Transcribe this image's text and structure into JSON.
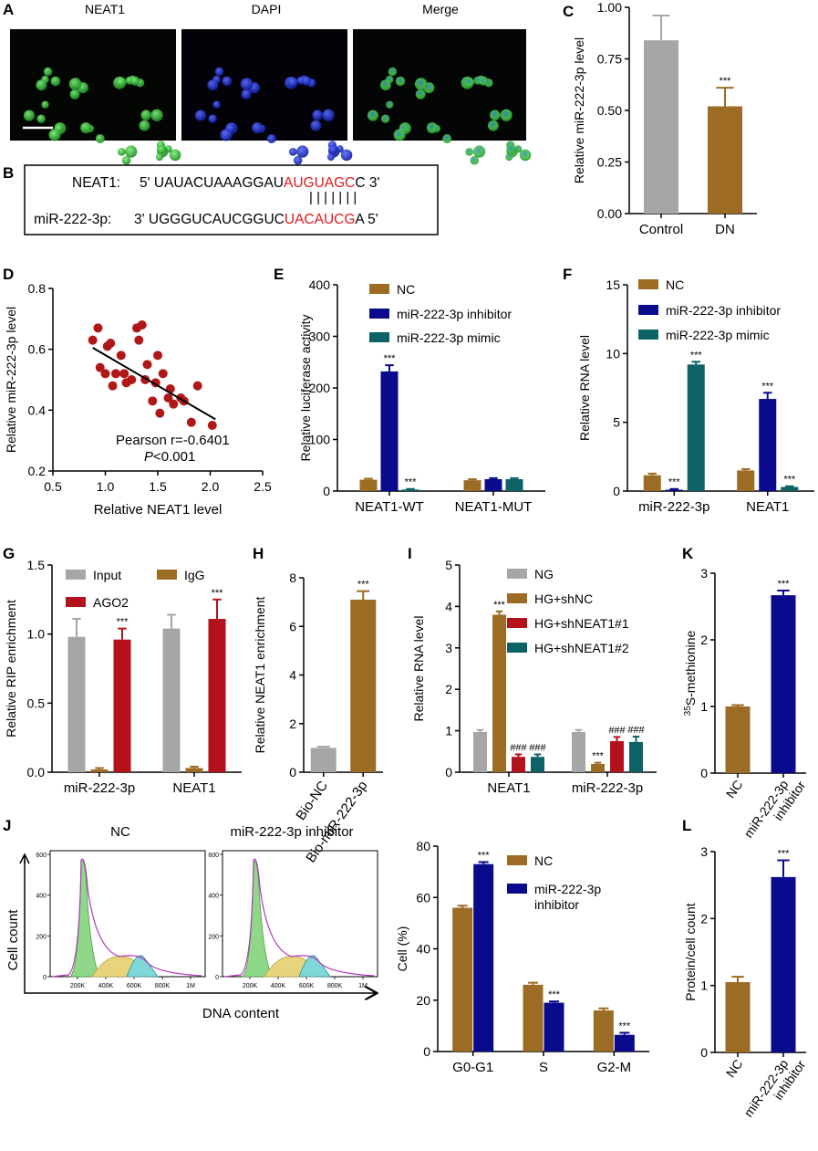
{
  "colors": {
    "gray": "#a6a6a6",
    "brown": "#9c6b24",
    "navy": "#0a0a8c",
    "teal": "#0d6265",
    "red": "#b3121b",
    "scatter": "#b01818",
    "microGreen": "#2ea831",
    "microBlue": "#1f2bd6",
    "seqRed": "#e0191d"
  },
  "panels": {
    "A": {
      "label": "A",
      "titles": [
        "NEAT1",
        "DAPI",
        "Merge"
      ]
    },
    "B": {
      "label": "B",
      "line1": {
        "name": "NEAT1:",
        "pre": "5' UAUACUAAAGGAU",
        "hl": "AUGUAGC",
        "post": "C 3'"
      },
      "bars": "| | | | | | |",
      "line2": {
        "name": "miR-222-3p:",
        "pre": "3' UGGGUCAUCGGUC",
        "hl": "UACAUCG",
        "post": "A 5'"
      }
    },
    "C": {
      "label": "C",
      "chart_data": {
        "type": "bar",
        "ylabel": "Relative miR-222-3p level",
        "categories": [
          "Control",
          "DN"
        ],
        "values": [
          0.84,
          0.52
        ],
        "errors": [
          0.12,
          0.09
        ],
        "colors": [
          "#a6a6a6",
          "#9c6b24"
        ],
        "sig": [
          "",
          "***"
        ],
        "ylim": [
          0,
          1.0
        ],
        "yticks": [
          "0.00",
          "0.25",
          "0.50",
          "0.75",
          "1.00"
        ]
      }
    },
    "D": {
      "label": "D",
      "chart_data": {
        "type": "scatter",
        "xlabel": "Relative NEAT1 level",
        "ylabel": "Relative miR-222-3p level",
        "xlim": [
          0.5,
          2.5
        ],
        "ylim": [
          0.2,
          0.8
        ],
        "xticks": [
          "0.5",
          "1.0",
          "1.5",
          "2.0",
          "2.5"
        ],
        "yticks": [
          "0.2",
          "0.4",
          "0.6",
          "0.8"
        ],
        "points": [
          [
            0.88,
            0.63
          ],
          [
            0.93,
            0.67
          ],
          [
            0.95,
            0.54
          ],
          [
            1.0,
            0.52
          ],
          [
            1.02,
            0.61
          ],
          [
            1.05,
            0.62
          ],
          [
            1.07,
            0.48
          ],
          [
            1.1,
            0.52
          ],
          [
            1.15,
            0.58
          ],
          [
            1.18,
            0.52
          ],
          [
            1.2,
            0.49
          ],
          [
            1.25,
            0.5
          ],
          [
            1.3,
            0.67
          ],
          [
            1.32,
            0.63
          ],
          [
            1.35,
            0.68
          ],
          [
            1.38,
            0.5
          ],
          [
            1.4,
            0.55
          ],
          [
            1.45,
            0.43
          ],
          [
            1.48,
            0.49
          ],
          [
            1.5,
            0.58
          ],
          [
            1.52,
            0.39
          ],
          [
            1.55,
            0.52
          ],
          [
            1.6,
            0.44
          ],
          [
            1.62,
            0.47
          ],
          [
            1.65,
            0.42
          ],
          [
            1.72,
            0.44
          ],
          [
            1.75,
            0.43
          ],
          [
            1.82,
            0.36
          ],
          [
            1.88,
            0.48
          ],
          [
            2.02,
            0.35
          ]
        ],
        "fit": [
          [
            0.88,
            0.605
          ],
          [
            2.05,
            0.37
          ]
        ],
        "stat1": "Pearson r=-0.6401",
        "stat2_p": "P",
        "stat2_rest": "<0.001"
      }
    },
    "E": {
      "label": "E",
      "chart_data": {
        "type": "bar",
        "ylabel": "Relative luciferase activity",
        "categories": [
          "NEAT1-WT",
          "NEAT1-MUT"
        ],
        "series": [
          {
            "name": "NC",
            "color": "#9c6b24",
            "values": [
              22,
              21
            ],
            "errors": [
              2,
              2
            ],
            "sig": [
              "",
              ""
            ]
          },
          {
            "name": "miR-222-3p inhibitor",
            "color": "#0a0a8c",
            "values": [
              232,
              23
            ],
            "errors": [
              12,
              2
            ],
            "sig": [
              "***",
              ""
            ]
          },
          {
            "name": "miR-222-3p mimic",
            "color": "#0d6265",
            "values": [
              3,
              23
            ],
            "errors": [
              1,
              2
            ],
            "sig": [
              "***",
              ""
            ]
          }
        ],
        "ylim": [
          0,
          400
        ],
        "yticks": [
          "0",
          "100",
          "200",
          "300",
          "400"
        ]
      }
    },
    "F": {
      "label": "F",
      "chart_data": {
        "type": "bar",
        "ylabel": "Relative RNA level",
        "categories": [
          "miR-222-3p",
          "NEAT1"
        ],
        "series": [
          {
            "name": "NC",
            "color": "#9c6b24",
            "values": [
              1.15,
              1.5
            ],
            "errors": [
              0.12,
              0.1
            ],
            "sig": [
              "",
              ""
            ]
          },
          {
            "name": "miR-222-3p inhibitor",
            "color": "#0a0a8c",
            "values": [
              0.1,
              6.7
            ],
            "errors": [
              0.05,
              0.45
            ],
            "sig": [
              "***",
              "***"
            ]
          },
          {
            "name": "miR-222-3p mimic",
            "color": "#0d6265",
            "values": [
              9.2,
              0.3
            ],
            "errors": [
              0.2,
              0.05
            ],
            "sig": [
              "***",
              "***"
            ]
          }
        ],
        "ylim": [
          0,
          15
        ],
        "yticks": [
          "0",
          "5",
          "10",
          "15"
        ]
      }
    },
    "G": {
      "label": "G",
      "chart_data": {
        "type": "bar",
        "ylabel": "Relative RIP enrichment",
        "categories": [
          "miR-222-3p",
          "NEAT1"
        ],
        "series": [
          {
            "name": "Input",
            "color": "#a6a6a6",
            "values": [
              0.98,
              1.04
            ],
            "errors": [
              0.13,
              0.1
            ],
            "sig": [
              "",
              ""
            ]
          },
          {
            "name": "IgG",
            "color": "#9c6b24",
            "values": [
              0.02,
              0.03
            ],
            "errors": [
              0.01,
              0.01
            ],
            "sig": [
              "",
              ""
            ]
          },
          {
            "name": "AGO2",
            "color": "#b3121b",
            "values": [
              0.96,
              1.11
            ],
            "errors": [
              0.08,
              0.14
            ],
            "sig": [
              "***",
              "***"
            ]
          }
        ],
        "ylim": [
          0,
          1.5
        ],
        "yticks": [
          "0.0",
          "0.5",
          "1.0",
          "1.5"
        ]
      }
    },
    "H": {
      "label": "H",
      "chart_data": {
        "type": "bar",
        "ylabel": "Relative NEAT1 enrichment",
        "categories": [
          "Bio-NC",
          "Bio-miR-222-3p"
        ],
        "values": [
          1.0,
          7.1
        ],
        "errors": [
          0.05,
          0.35
        ],
        "colors": [
          "#a6a6a6",
          "#9c6b24"
        ],
        "sig": [
          "",
          "***"
        ],
        "ylim": [
          0,
          8
        ],
        "yticks": [
          "0",
          "2",
          "4",
          "6",
          "8"
        ]
      }
    },
    "I": {
      "label": "I",
      "chart_data": {
        "type": "bar",
        "ylabel": "Relative RNA level",
        "categories": [
          "NEAT1",
          "miR-222-3p"
        ],
        "series": [
          {
            "name": "NG",
            "color": "#a6a6a6",
            "values": [
              0.97,
              0.97
            ],
            "errors": [
              0.05,
              0.05
            ],
            "sig": [
              "",
              ""
            ]
          },
          {
            "name": "HG+shNC",
            "color": "#9c6b24",
            "values": [
              3.8,
              0.2
            ],
            "errors": [
              0.08,
              0.03
            ],
            "sig": [
              "***",
              "***"
            ]
          },
          {
            "name": "HG+shNEAT1#1",
            "color": "#b3121b",
            "values": [
              0.37,
              0.75
            ],
            "errors": [
              0.06,
              0.1
            ],
            "sig": [
              "###",
              "###"
            ]
          },
          {
            "name": "HG+shNEAT1#2",
            "color": "#0d6265",
            "values": [
              0.37,
              0.73
            ],
            "errors": [
              0.06,
              0.13
            ],
            "sig": [
              "###",
              "###"
            ]
          }
        ],
        "ylim": [
          0,
          5
        ],
        "yticks": [
          "0",
          "1",
          "2",
          "3",
          "4",
          "5"
        ]
      }
    },
    "K": {
      "label": "K",
      "chart_data": {
        "type": "bar",
        "ylabel_sup": "35",
        "ylabel": "S-methionine",
        "categories": [
          "NC",
          "miR-222-3p inhibitor"
        ],
        "values": [
          1.0,
          2.67
        ],
        "errors": [
          0.02,
          0.07
        ],
        "colors": [
          "#9c6b24",
          "#0a0a8c"
        ],
        "sig": [
          "",
          "***"
        ],
        "ylim": [
          0,
          3
        ],
        "yticks": [
          "0",
          "1",
          "2",
          "3"
        ]
      }
    },
    "J": {
      "label": "J",
      "flow": {
        "titles": [
          "NC",
          "miR-222-3p inhibitor"
        ],
        "ylabel": "Cell count",
        "xlabel": "DNA content",
        "yticks": [
          "0",
          "200",
          "400",
          "600"
        ],
        "xticks": [
          "200K",
          "400K",
          "600K",
          "800K",
          "1M"
        ]
      },
      "chart_data": {
        "type": "bar",
        "ylabel": "Cell (%)",
        "categories": [
          "G0-G1",
          "S",
          "G2-M"
        ],
        "series": [
          {
            "name": "NC",
            "color": "#9c6b24",
            "values": [
              56,
              26,
              16
            ],
            "errors": [
              0.8,
              0.8,
              0.8
            ],
            "sig": [
              "",
              "",
              ""
            ]
          },
          {
            "name": "miR-222-3p inhibitor",
            "color": "#0a0a8c",
            "values": [
              73,
              19,
              6.5
            ],
            "errors": [
              0.8,
              0.5,
              0.8
            ],
            "sig": [
              "***",
              "***",
              "***"
            ]
          }
        ],
        "legend_lines": [
          [
            "NC"
          ],
          [
            "miR-222-3p",
            "inhibitor"
          ]
        ],
        "ylim": [
          0,
          80
        ],
        "yticks": [
          "0",
          "20",
          "40",
          "60",
          "80"
        ]
      }
    },
    "L": {
      "label": "L",
      "chart_data": {
        "type": "bar",
        "ylabel": "Protein/cell count",
        "categories": [
          "NC",
          "miR-222-3p inhibitor"
        ],
        "values": [
          1.05,
          2.62
        ],
        "errors": [
          0.08,
          0.25
        ],
        "colors": [
          "#9c6b24",
          "#0a0a8c"
        ],
        "sig": [
          "",
          "***"
        ],
        "ylim": [
          0,
          3
        ],
        "yticks": [
          "0",
          "1",
          "2",
          "3"
        ]
      }
    }
  }
}
